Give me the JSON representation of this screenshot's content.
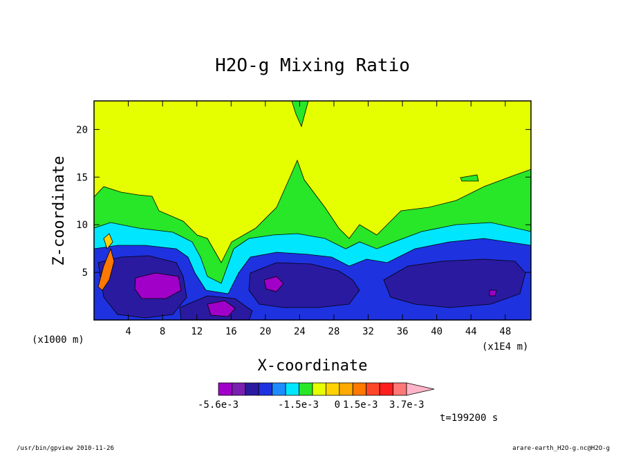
{
  "chart_data": {
    "type": "heatmap",
    "title": "H2O-g Mixing Ratio",
    "xlabel": "X-coordinate",
    "ylabel": "Z-coordinate",
    "x_unit_left": "(x1000 m)",
    "x_unit_right": "(x1E4 m)",
    "xlim": [
      0,
      51
    ],
    "ylim": [
      0,
      23
    ],
    "x_ticks": [
      4,
      8,
      12,
      16,
      20,
      24,
      28,
      32,
      36,
      40,
      44,
      48
    ],
    "y_ticks": [
      5,
      10,
      15,
      20
    ],
    "colorbar": {
      "colors": [
        "#a000c8",
        "#7a1fb0",
        "#2a1aa0",
        "#1e32e0",
        "#1e8cff",
        "#00e6ff",
        "#28e628",
        "#e6ff00",
        "#ffd200",
        "#ffaa00",
        "#ff7800",
        "#ff4628",
        "#ff1e1e",
        "#ff7878",
        "#ffb4c8"
      ],
      "labels": [
        "-5.6e-3",
        "-1.5e-3",
        "0",
        "1.5e-3",
        "3.7e-3"
      ]
    },
    "time_label": "t=199200 s"
  },
  "footer": {
    "left": "/usr/bin/gpview  2010-11-26",
    "right": "arare-earth_H2O-g.nc@H2O-g"
  }
}
